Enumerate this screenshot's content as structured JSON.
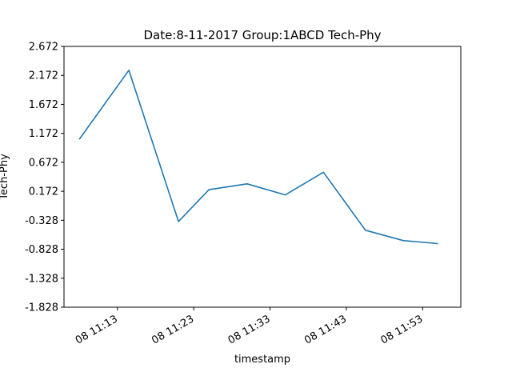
{
  "chart_data": {
    "type": "line",
    "title": "Date:8-11-2017 Group:1ABCD Tech-Phy",
    "xlabel": "timestamp",
    "ylabel": "Tech-Phy",
    "grid": false,
    "line_color": "#1f77b4",
    "ylim": [
      -1.828,
      2.672
    ],
    "yticks": [
      "2.672",
      "2.172",
      "1.672",
      "1.172",
      "0.672",
      "0.172",
      "-0.328",
      "-0.828",
      "-1.328",
      "-1.828"
    ],
    "xlim": [
      "2017-11-08 11:06",
      "2017-11-08 11:58"
    ],
    "xticks": [
      {
        "time": "2017-11-08 11:13",
        "label": "08 11:13"
      },
      {
        "time": "2017-11-08 11:23",
        "label": "08 11:23"
      },
      {
        "time": "2017-11-08 11:33",
        "label": "08 11:33"
      },
      {
        "time": "2017-11-08 11:43",
        "label": "08 11:43"
      },
      {
        "time": "2017-11-08 11:53",
        "label": "08 11:53"
      }
    ],
    "series": [
      {
        "x": [
          "2017-11-08 11:08",
          "2017-11-08 11:14:30",
          "2017-11-08 11:21",
          "2017-11-08 11:25",
          "2017-11-08 11:30",
          "2017-11-08 11:35",
          "2017-11-08 11:40",
          "2017-11-08 11:45:30",
          "2017-11-08 11:50:30",
          "2017-11-08 11:55"
        ],
        "values": [
          1.07,
          2.26,
          -0.35,
          0.2,
          0.3,
          0.11,
          0.5,
          -0.5,
          -0.68,
          -0.73
        ]
      }
    ]
  }
}
